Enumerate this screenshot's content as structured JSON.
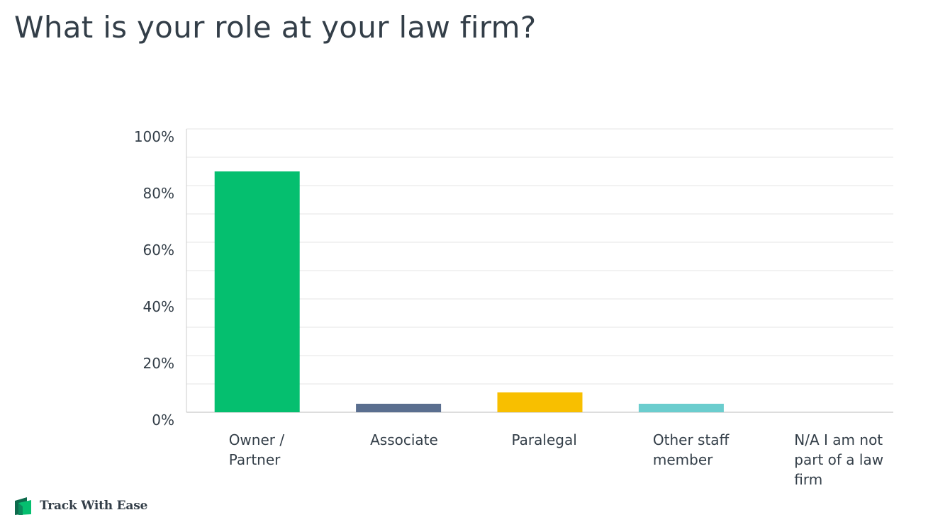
{
  "title": "What is your role at your law firm?",
  "brand": {
    "name": "Track With Ease",
    "icon": "brand-logo-icon"
  },
  "chart_data": {
    "type": "bar",
    "title": "What is your role at your law firm?",
    "categories": [
      [
        "Owner /",
        "Partner"
      ],
      [
        "Associate"
      ],
      [
        "Paralegal"
      ],
      [
        "Other staff",
        "member"
      ],
      [
        "N/A I am not",
        "part of a law",
        "firm"
      ]
    ],
    "values": [
      85,
      3,
      7,
      3,
      0
    ],
    "colors": [
      "#05bf6f",
      "#5a6e8f",
      "#f8bf00",
      "#6bcdce",
      "#cccccc"
    ],
    "ylim": [
      0,
      100
    ],
    "yticks": [
      0,
      20,
      40,
      60,
      80,
      100
    ],
    "ytick_labels": [
      "0%",
      "20%",
      "40%",
      "60%",
      "80%",
      "100%"
    ],
    "grid": true,
    "xlabel": "",
    "ylabel": ""
  }
}
